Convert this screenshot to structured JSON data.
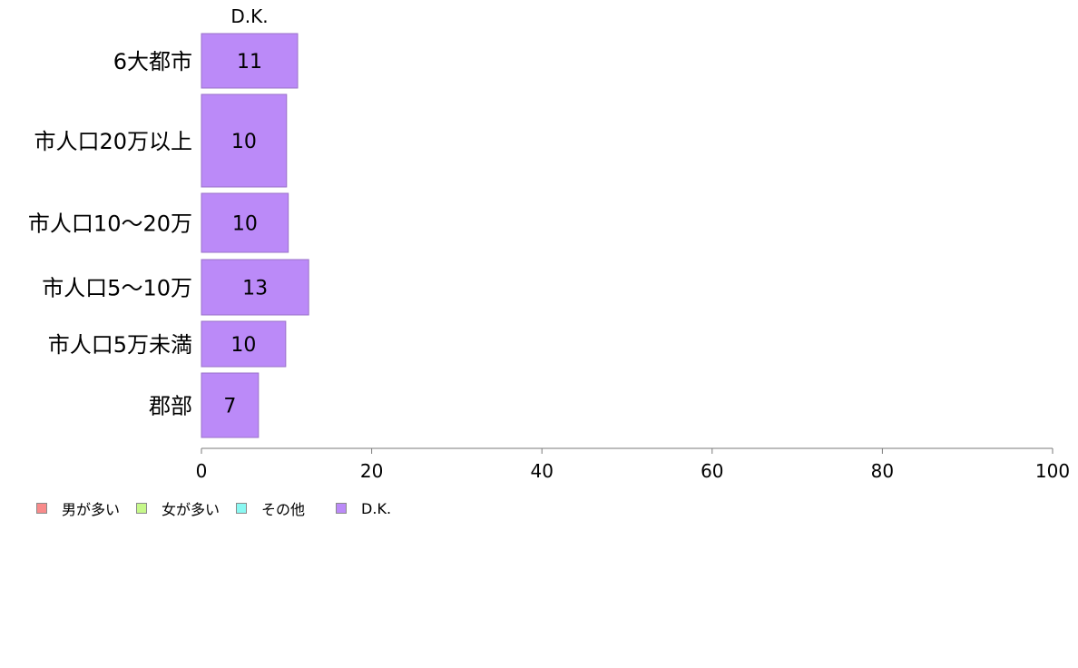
{
  "chart_data": {
    "type": "bar",
    "orientation": "horizontal",
    "stacked": true,
    "categories": [
      "6大都市",
      "市人口20万以上",
      "市人口10～20万",
      "市人口5～10万",
      "市人口5万未満",
      "郡部"
    ],
    "series": [
      {
        "name": "男が多い",
        "color": "#f88a8a",
        "values": [
          0,
          0,
          0,
          0,
          0,
          0
        ]
      },
      {
        "name": "女が多い",
        "color": "#c6f88a",
        "values": [
          0,
          0,
          0,
          0,
          0,
          0
        ]
      },
      {
        "name": "その他",
        "color": "#8af8f2",
        "values": [
          0,
          0,
          0,
          0,
          0,
          0
        ]
      },
      {
        "name": "D.K.",
        "color": "#bb8af8",
        "values": [
          11.3,
          10.0,
          10.2,
          12.6,
          9.9,
          6.7
        ]
      }
    ],
    "data_labels": [
      "11",
      "10",
      "10",
      "13",
      "10",
      "7"
    ],
    "top_label": "D.K.",
    "xlim": [
      0,
      100
    ],
    "xticks": [
      0,
      20,
      40,
      60,
      80,
      100
    ],
    "xtick_labels": [
      "0",
      "20",
      "40",
      "60",
      "80",
      "100"
    ],
    "grid": false,
    "legend_position": "bottom-left",
    "title": "",
    "xlabel": "",
    "ylabel": ""
  }
}
